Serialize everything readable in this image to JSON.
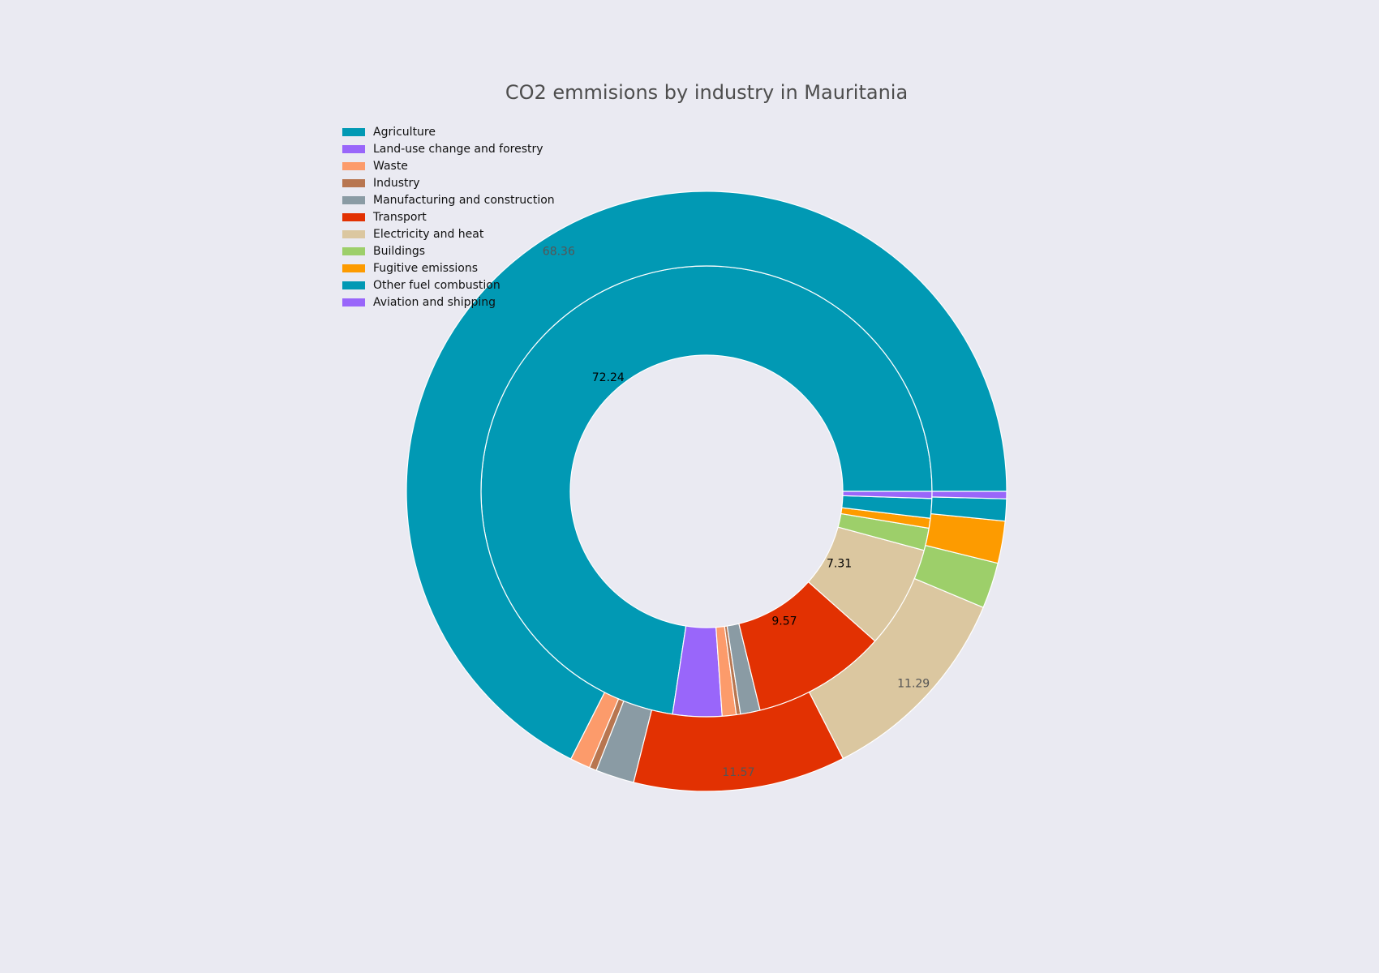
{
  "chart_data": {
    "type": "pie",
    "subtype": "nested-donut",
    "title": "CO2 emmisions by industry in Mauritania",
    "legend": {
      "placement": "top-left",
      "entries": [
        {
          "label": "Agriculture",
          "color": "#0199b4"
        },
        {
          "label": "Land-use change and forestry",
          "color": "#9966fa"
        },
        {
          "label": "Waste",
          "color": "#fc9b6b"
        },
        {
          "label": "Industry",
          "color": "#b87650"
        },
        {
          "label": "Manufacturing and construction",
          "color": "#8a9ba4"
        },
        {
          "label": "Transport",
          "color": "#e23102"
        },
        {
          "label": "Electricity and heat",
          "color": "#dbc7a0"
        },
        {
          "label": "Buildings",
          "color": "#9dcf6a"
        },
        {
          "label": "Fugitive emissions",
          "color": "#fd9b00"
        },
        {
          "label": "Other fuel combustion",
          "color": "#0199b4"
        },
        {
          "label": "Aviation and shipping",
          "color": "#9966fa"
        }
      ]
    },
    "series": [
      {
        "ring": "inner",
        "values": [
          72.24,
          3.5,
          1.0,
          0.3,
          1.4,
          9.57,
          7.31,
          1.6,
          0.7,
          1.4,
          0.5
        ],
        "data_labels": [
          "72.24",
          "",
          "",
          "",
          "",
          "9.57",
          "7.31",
          "",
          "",
          "",
          ""
        ]
      },
      {
        "ring": "outer",
        "values": [
          68.36,
          0.0,
          1.1,
          0.4,
          2.1,
          11.57,
          11.29,
          2.5,
          2.3,
          1.2,
          0.4
        ],
        "data_labels": [
          "68.36",
          "",
          "",
          "",
          "",
          "11.57",
          "11.29",
          "",
          "",
          "",
          ""
        ]
      }
    ]
  }
}
